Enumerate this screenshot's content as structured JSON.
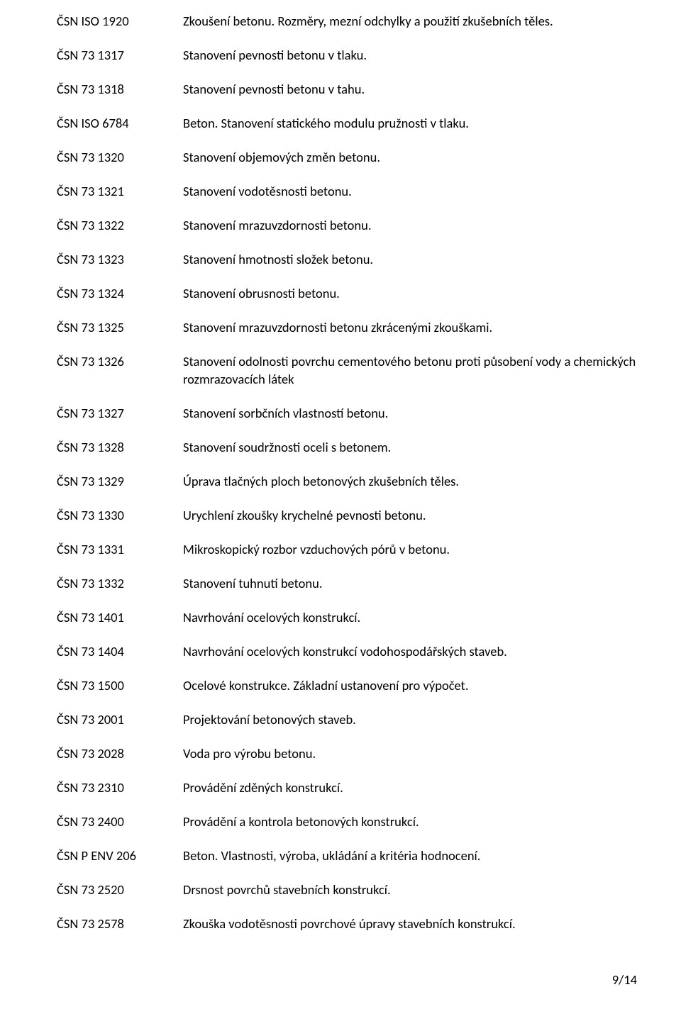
{
  "entries": [
    {
      "code": "ČSN ISO 1920",
      "desc": "Zkoušení betonu. Rozměry, mezní odchylky a použití zkušebních těles."
    },
    {
      "code": "ČSN 73 1317",
      "desc": "Stanovení pevnosti betonu v tlaku."
    },
    {
      "code": "ČSN 73 1318",
      "desc": "Stanovení pevnosti betonu v tahu."
    },
    {
      "code": "ČSN ISO 6784",
      "desc": "Beton. Stanovení statického modulu pružnosti v tlaku."
    },
    {
      "code": "ČSN 73 1320",
      "desc": "Stanovení objemových změn betonu."
    },
    {
      "code": "ČSN 73 1321",
      "desc": "Stanovení vodotěsnosti betonu."
    },
    {
      "code": "ČSN 73 1322",
      "desc": "Stanovení mrazuvzdornosti betonu."
    },
    {
      "code": "ČSN 73 1323",
      "desc": "Stanovení hmotnosti složek betonu."
    },
    {
      "code": "ČSN 73 1324",
      "desc": "Stanovení obrusnosti betonu."
    },
    {
      "code": "ČSN 73 1325",
      "desc": "Stanovení mrazuvzdornosti betonu zkrácenými zkouškami."
    },
    {
      "code": "ČSN 73 1326",
      "desc": "Stanovení odolnosti povrchu cementového betonu proti působení vody a chemických rozmrazovacích látek"
    },
    {
      "code": "ČSN 73 1327",
      "desc": "Stanovení sorbčních vlastností betonu."
    },
    {
      "code": "ČSN 73 1328",
      "desc": "Stanovení soudržnosti oceli s betonem."
    },
    {
      "code": "ČSN 73 1329",
      "desc": "Úprava tlačných ploch betonových zkušebních těles."
    },
    {
      "code": "ČSN 73 1330",
      "desc": "Urychlení zkoušky krychelné pevnosti betonu."
    },
    {
      "code": "ČSN 73 1331",
      "desc": "Mikroskopický rozbor vzduchových pórů v betonu."
    },
    {
      "code": "ČSN 73 1332",
      "desc": "Stanovení tuhnutí betonu."
    },
    {
      "code": "ČSN 73 1401",
      "desc": "Navrhování ocelových konstrukcí."
    },
    {
      "code": "ČSN 73 1404",
      "desc": "Navrhování ocelových konstrukcí vodohospodářských staveb."
    },
    {
      "code": "ČSN 73 1500",
      "desc": "Ocelové konstrukce. Základní ustanovení pro výpočet."
    },
    {
      "code": "ČSN 73 2001",
      "desc": "Projektování betonových staveb."
    },
    {
      "code": "ČSN 73 2028",
      "desc": "Voda pro výrobu betonu."
    },
    {
      "code": "ČSN 73 2310",
      "desc": "Provádění zděných konstrukcí."
    },
    {
      "code": "ČSN 73 2400",
      "desc": "Provádění a kontrola betonových konstrukcí."
    },
    {
      "code": "ČSN P ENV 206",
      "desc": "Beton. Vlastnosti, výroba, ukládání a kritéria hodnocení."
    },
    {
      "code": "ČSN 73 2520",
      "desc": "Drsnost povrchů stavebních konstrukcí."
    },
    {
      "code": "ČSN 73 2578",
      "desc": "Zkouška vodotěsnosti povrchové úpravy stavebních konstrukcí."
    }
  ],
  "page_number": "9/14"
}
